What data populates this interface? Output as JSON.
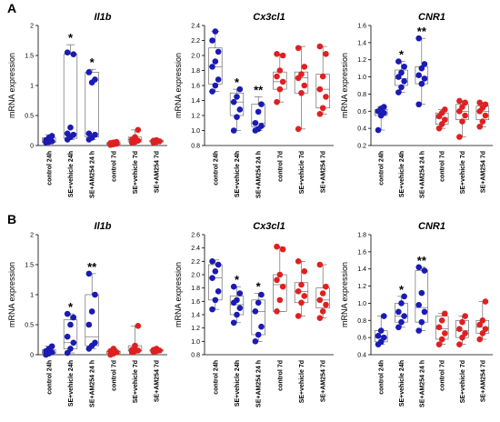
{
  "colors": {
    "series_24h": "#1a1ab4",
    "series_7d": "#e02020"
  },
  "chart_data": [
    {
      "panel": "A",
      "type": "box",
      "title": "Il1b",
      "ylabel": "mRNA expression",
      "ylim": [
        0,
        2
      ],
      "yticks": [
        0,
        0.5,
        1,
        1.5,
        2
      ],
      "categories": [
        "control 24h",
        "SE+vehicle 24h",
        "SE+AM254 24 h",
        "control 7d",
        "SE+vehicle 7d",
        "SE+AM254 7d"
      ],
      "annotations": [
        "",
        "*",
        "*",
        "",
        "",
        ""
      ],
      "boxes": [
        {
          "min": 0.05,
          "q1": 0.05,
          "median": 0.07,
          "q3": 0.13,
          "max": 0.18,
          "points": [
            0.05,
            0.06,
            0.07,
            0.09,
            0.13,
            0.16
          ]
        },
        {
          "min": 0.1,
          "q1": 0.12,
          "median": 0.2,
          "q3": 1.52,
          "max": 1.68,
          "points": [
            0.1,
            0.14,
            0.18,
            0.2,
            0.3,
            1.52,
            1.55
          ]
        },
        {
          "min": 0.1,
          "q1": 0.14,
          "median": 0.2,
          "q3": 1.22,
          "max": 1.27,
          "points": [
            0.1,
            0.13,
            0.18,
            0.2,
            1.05,
            1.1,
            1.22
          ]
        },
        {
          "min": 0.01,
          "q1": 0.02,
          "median": 0.03,
          "q3": 0.05,
          "max": 0.07,
          "points": [
            0.01,
            0.02,
            0.03,
            0.04,
            0.05,
            0.06
          ]
        },
        {
          "min": 0.05,
          "q1": 0.06,
          "median": 0.1,
          "q3": 0.14,
          "max": 0.26,
          "points": [
            0.05,
            0.06,
            0.08,
            0.1,
            0.14,
            0.26
          ]
        },
        {
          "min": 0.05,
          "q1": 0.06,
          "median": 0.07,
          "q3": 0.09,
          "max": 0.1,
          "points": [
            0.05,
            0.06,
            0.07,
            0.08,
            0.09
          ]
        }
      ]
    },
    {
      "panel": "",
      "type": "box",
      "title": "Cx3cl1",
      "ylabel": "mRNA expression",
      "ylim": [
        0.8,
        2.4
      ],
      "yticks": [
        0.8,
        1.0,
        1.2,
        1.4,
        1.6,
        1.8,
        2.0,
        2.2,
        2.4
      ],
      "categories": [
        "control 24h",
        "SE+vehicle 24h",
        "SE+AM254 24 h",
        "control 7d",
        "SE+vehicle 7d",
        "SE+AM254 7d"
      ],
      "annotations": [
        "",
        "*",
        "**",
        "",
        "",
        ""
      ],
      "boxes": [
        {
          "min": 1.52,
          "q1": 1.62,
          "median": 1.85,
          "q3": 2.1,
          "max": 2.32,
          "points": [
            1.52,
            1.6,
            1.68,
            1.85,
            1.92,
            2.05,
            2.2,
            2.32
          ]
        },
        {
          "min": 1.0,
          "q1": 1.2,
          "median": 1.38,
          "q3": 1.5,
          "max": 1.55,
          "points": [
            1.0,
            1.18,
            1.28,
            1.38,
            1.45,
            1.55
          ]
        },
        {
          "min": 1.0,
          "q1": 1.05,
          "median": 1.1,
          "q3": 1.35,
          "max": 1.45,
          "points": [
            1.0,
            1.02,
            1.06,
            1.1,
            1.25,
            1.35
          ]
        },
        {
          "min": 1.38,
          "q1": 1.55,
          "median": 1.65,
          "q3": 1.78,
          "max": 2.02,
          "points": [
            1.38,
            1.55,
            1.65,
            1.72,
            1.8,
            2.0,
            2.02
          ]
        },
        {
          "min": 1.02,
          "q1": 1.5,
          "median": 1.7,
          "q3": 1.78,
          "max": 2.12,
          "points": [
            1.02,
            1.5,
            1.6,
            1.7,
            1.75,
            1.85,
            2.1
          ]
        },
        {
          "min": 1.22,
          "q1": 1.3,
          "median": 1.55,
          "q3": 1.75,
          "max": 2.12,
          "points": [
            1.22,
            1.3,
            1.45,
            1.55,
            1.72,
            2.02,
            2.12
          ]
        }
      ]
    },
    {
      "panel": "",
      "type": "box",
      "title": "CNR1",
      "ylabel": "mRNA expression",
      "ylim": [
        0.2,
        1.6
      ],
      "yticks": [
        0.2,
        0.4,
        0.6,
        0.8,
        1.0,
        1.2,
        1.4,
        1.6
      ],
      "categories": [
        "control 24h",
        "SE+vehicle 24h",
        "SE+AM254 24 h",
        "control 7d",
        "SE+vehicle 7d",
        "SE+AM254 7d"
      ],
      "annotations": [
        "",
        "*",
        "**",
        "",
        "",
        ""
      ],
      "boxes": [
        {
          "min": 0.38,
          "q1": 0.55,
          "median": 0.58,
          "q3": 0.62,
          "max": 0.65,
          "points": [
            0.38,
            0.55,
            0.58,
            0.6,
            0.63,
            0.65
          ]
        },
        {
          "min": 0.82,
          "q1": 0.9,
          "median": 0.98,
          "q3": 1.08,
          "max": 1.18,
          "points": [
            0.82,
            0.88,
            0.95,
            1.0,
            1.05,
            1.12,
            1.18
          ]
        },
        {
          "min": 0.68,
          "q1": 0.92,
          "median": 1.0,
          "q3": 1.12,
          "max": 1.45,
          "points": [
            0.68,
            0.92,
            0.98,
            1.02,
            1.1,
            1.15,
            1.45
          ]
        },
        {
          "min": 0.4,
          "q1": 0.45,
          "median": 0.52,
          "q3": 0.58,
          "max": 0.62,
          "points": [
            0.4,
            0.45,
            0.5,
            0.54,
            0.58,
            0.62
          ]
        },
        {
          "min": 0.3,
          "q1": 0.5,
          "median": 0.6,
          "q3": 0.68,
          "max": 0.72,
          "points": [
            0.3,
            0.48,
            0.55,
            0.6,
            0.65,
            0.7,
            0.72
          ]
        },
        {
          "min": 0.42,
          "q1": 0.5,
          "median": 0.6,
          "q3": 0.66,
          "max": 0.7,
          "points": [
            0.42,
            0.48,
            0.55,
            0.6,
            0.64,
            0.68,
            0.7
          ]
        }
      ]
    },
    {
      "panel": "B",
      "type": "box",
      "title": "Il1b",
      "ylabel": "mRNA expression",
      "ylim": [
        0,
        2
      ],
      "yticks": [
        0,
        0.5,
        1,
        1.5,
        2
      ],
      "categories": [
        "control 24h",
        "SE+vehicle 24h",
        "SE+AM254 24 h",
        "control 7d",
        "SE+vehicle 7d",
        "SE+AM254 7d"
      ],
      "annotations": [
        "",
        "*",
        "**",
        "",
        "",
        ""
      ],
      "boxes": [
        {
          "min": 0.0,
          "q1": 0.02,
          "median": 0.04,
          "q3": 0.08,
          "max": 0.14,
          "points": [
            0.0,
            0.02,
            0.04,
            0.06,
            0.1,
            0.14
          ]
        },
        {
          "min": 0.03,
          "q1": 0.1,
          "median": 0.2,
          "q3": 0.58,
          "max": 0.68,
          "points": [
            0.03,
            0.1,
            0.2,
            0.3,
            0.5,
            0.62,
            0.68
          ]
        },
        {
          "min": 0.1,
          "q1": 0.15,
          "median": 0.3,
          "q3": 1.0,
          "max": 1.35,
          "points": [
            0.1,
            0.15,
            0.2,
            0.5,
            0.72,
            1.0,
            1.35
          ]
        },
        {
          "min": 0.0,
          "q1": 0.02,
          "median": 0.05,
          "q3": 0.06,
          "max": 0.1,
          "points": [
            0.0,
            0.02,
            0.04,
            0.06,
            0.1
          ]
        },
        {
          "min": 0.04,
          "q1": 0.06,
          "median": 0.07,
          "q3": 0.15,
          "max": 0.48,
          "points": [
            0.04,
            0.06,
            0.07,
            0.08,
            0.15,
            0.48
          ]
        },
        {
          "min": 0.05,
          "q1": 0.06,
          "median": 0.07,
          "q3": 0.08,
          "max": 0.1,
          "points": [
            0.05,
            0.06,
            0.07,
            0.08,
            0.1
          ]
        }
      ]
    },
    {
      "panel": "",
      "type": "box",
      "title": "Cx3cl1",
      "ylabel": "mRNA expression",
      "ylim": [
        0.8,
        2.6
      ],
      "yticks": [
        0.8,
        1.0,
        1.2,
        1.4,
        1.6,
        1.8,
        2.0,
        2.2,
        2.4,
        2.6
      ],
      "categories": [
        "control 24h",
        "SE+vehicle 24h",
        "SE+AM254 24 h",
        "control 7d",
        "SE+vehicle 7d",
        "SE+AM254 7d"
      ],
      "annotations": [
        "",
        "*",
        "*",
        "",
        "",
        ""
      ],
      "boxes": [
        {
          "min": 1.48,
          "q1": 1.62,
          "median": 1.95,
          "q3": 2.15,
          "max": 2.22,
          "points": [
            1.48,
            1.62,
            1.75,
            1.95,
            2.05,
            2.15,
            2.2
          ]
        },
        {
          "min": 1.28,
          "q1": 1.4,
          "median": 1.55,
          "q3": 1.68,
          "max": 1.82,
          "points": [
            1.28,
            1.4,
            1.5,
            1.58,
            1.62,
            1.72,
            1.82
          ]
        },
        {
          "min": 1.0,
          "q1": 1.1,
          "median": 1.45,
          "q3": 1.62,
          "max": 1.72,
          "points": [
            1.0,
            1.1,
            1.22,
            1.45,
            1.58,
            1.7
          ]
        },
        {
          "min": 1.45,
          "q1": 1.45,
          "median": 1.85,
          "q3": 2.0,
          "max": 2.42,
          "points": [
            1.45,
            1.62,
            1.82,
            1.92,
            2.0,
            2.38,
            2.42
          ]
        },
        {
          "min": 1.38,
          "q1": 1.58,
          "median": 1.75,
          "q3": 1.88,
          "max": 2.2,
          "points": [
            1.38,
            1.58,
            1.68,
            1.75,
            1.85,
            2.05,
            2.2
          ]
        },
        {
          "min": 1.35,
          "q1": 1.5,
          "median": 1.62,
          "q3": 1.8,
          "max": 2.15,
          "points": [
            1.35,
            1.45,
            1.55,
            1.62,
            1.72,
            1.82,
            2.15
          ]
        }
      ]
    },
    {
      "panel": "",
      "type": "box",
      "title": "CNR1",
      "ylabel": "mRNA expression",
      "ylim": [
        0.4,
        1.8
      ],
      "yticks": [
        0.4,
        0.6,
        0.8,
        1.0,
        1.2,
        1.4,
        1.6,
        1.8
      ],
      "categories": [
        "control 24h",
        "SE+vehicle 24h",
        "SE+AM254 24 h",
        "control 7d",
        "SE+vehicle 7d",
        "SE+AM254 7d"
      ],
      "annotations": [
        "",
        "*",
        "**",
        "",
        "",
        ""
      ],
      "boxes": [
        {
          "min": 0.52,
          "q1": 0.55,
          "median": 0.6,
          "q3": 0.68,
          "max": 0.85,
          "points": [
            0.52,
            0.55,
            0.6,
            0.62,
            0.68,
            0.85
          ]
        },
        {
          "min": 0.72,
          "q1": 0.78,
          "median": 0.85,
          "q3": 1.0,
          "max": 1.08,
          "points": [
            0.72,
            0.78,
            0.85,
            0.9,
            1.0,
            1.08
          ]
        },
        {
          "min": 0.68,
          "q1": 0.78,
          "median": 0.95,
          "q3": 1.38,
          "max": 1.42,
          "points": [
            0.68,
            0.78,
            0.9,
            0.98,
            1.12,
            1.38,
            1.42
          ]
        },
        {
          "min": 0.52,
          "q1": 0.58,
          "median": 0.7,
          "q3": 0.85,
          "max": 0.88,
          "points": [
            0.52,
            0.58,
            0.65,
            0.72,
            0.8,
            0.88
          ]
        },
        {
          "min": 0.52,
          "q1": 0.6,
          "median": 0.68,
          "q3": 0.8,
          "max": 0.85,
          "points": [
            0.52,
            0.6,
            0.65,
            0.7,
            0.78,
            0.85
          ]
        },
        {
          "min": 0.58,
          "q1": 0.65,
          "median": 0.72,
          "q3": 0.8,
          "max": 1.02,
          "points": [
            0.58,
            0.65,
            0.7,
            0.75,
            0.8,
            1.02
          ]
        }
      ]
    }
  ]
}
